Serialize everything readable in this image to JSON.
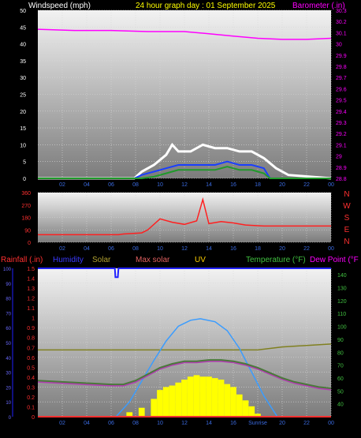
{
  "header": {
    "title_left": "Windspeed (mph)",
    "title_center": "24 hour graph day : 01 September 2025",
    "title_right": "Barometer (.in)"
  },
  "legend_bottom": {
    "rainfall": "Rainfall (.in)",
    "humidity": "Humidity",
    "solar": "Solar",
    "max_solar": "Max solar",
    "uv": "UV",
    "temperature": "Temperature (°F)",
    "dewpoint": "Dew Point (°F"
  },
  "colors": {
    "background": "#000000",
    "wind_avg": "#1a3fff",
    "wind_gust": "#ffffff",
    "wind_low": "#1f9a2a",
    "barometer": "#ff00ff",
    "wind_dir": "#ff2020",
    "humidity": "#2020ff",
    "rainfall": "#ff3030",
    "solar": "#ffff00",
    "solar_line": "#808020",
    "max_solar": "#3a9cff",
    "temperature": "#4a7a3a",
    "dewpoint": "#b040b0"
  },
  "chart_data": [
    {
      "id": "wind",
      "type": "line",
      "x_ticks": [
        "02",
        "04",
        "06",
        "08",
        "10",
        "12",
        "14",
        "16",
        "18",
        "20",
        "22",
        "00"
      ],
      "ylim_left": [
        0,
        50
      ],
      "yticks_left": [
        0,
        5,
        10,
        15,
        20,
        25,
        30,
        35,
        40,
        45,
        50
      ],
      "ylim_right": [
        28.8,
        30.3
      ],
      "yticks_right": [
        "28.8",
        "28.9",
        "29",
        "29.1",
        "29.2",
        "29.3",
        "29.4",
        "29.5",
        "29.6",
        "29.7",
        "29.8",
        "29.9",
        "30",
        "30.1",
        "30.2",
        "30.3"
      ],
      "barometer": {
        "x": [
          0,
          3,
          6,
          9,
          12,
          14,
          16,
          18,
          20,
          22,
          24
        ],
        "y": [
          30.13,
          30.12,
          30.12,
          30.11,
          30.11,
          30.09,
          30.07,
          30.05,
          30.04,
          30.04,
          30.05
        ]
      },
      "wind_avg": {
        "x": [
          0,
          7.9,
          8.5,
          9.5,
          10.5,
          11.5,
          12.5,
          13.5,
          14.5,
          15.5,
          16.5,
          17.5,
          18.5,
          19.0,
          24
        ],
        "y": [
          0,
          0,
          1,
          2,
          3,
          4,
          4,
          4,
          4,
          5,
          4,
          4,
          3,
          0,
          0
        ]
      },
      "wind_gust": {
        "x": [
          0,
          7.9,
          8.5,
          9.5,
          10.5,
          11.0,
          11.5,
          12.5,
          13.5,
          14.5,
          15.5,
          16.5,
          17.5,
          18.5,
          19.5,
          20.5,
          24
        ],
        "y": [
          0,
          0,
          2,
          4,
          7,
          10,
          8,
          8,
          10,
          9,
          9,
          8,
          8,
          6,
          3,
          1,
          0
        ]
      }
    },
    {
      "id": "direction",
      "type": "line",
      "x_ticks": [
        "02",
        "04",
        "06",
        "08",
        "10",
        "12",
        "14",
        "16",
        "18",
        "20",
        "22",
        "00"
      ],
      "ylim": [
        0,
        360
      ],
      "yticks": [
        0,
        90,
        180,
        270,
        360
      ],
      "compass": [
        "N",
        "W",
        "S",
        "E",
        "N"
      ],
      "series": {
        "x": [
          0,
          6.6,
          7.0,
          8.5,
          9.0,
          10,
          11,
          12,
          13,
          13.5,
          14,
          15,
          16,
          17,
          18,
          18.5,
          24
        ],
        "y": [
          55,
          55,
          60,
          68,
          90,
          170,
          145,
          130,
          155,
          310,
          135,
          150,
          140,
          125,
          120,
          118,
          118
        ]
      }
    },
    {
      "id": "weather",
      "type": "line",
      "x_ticks": [
        "02",
        "04",
        "06",
        "08",
        "10",
        "12",
        "14",
        "16",
        "Sunrise",
        "20",
        "22",
        "00"
      ],
      "ylim_left": [
        0,
        100
      ],
      "yticks_left": [
        0,
        10,
        20,
        30,
        40,
        50,
        60,
        70,
        80,
        90,
        100
      ],
      "ylim_rain": [
        0,
        1.5
      ],
      "yticks_rain": [
        "0",
        "0.1",
        "0.2",
        "0.3",
        "0.4",
        "0.5",
        "0.6",
        "0.7",
        "0.8",
        "0.9",
        "1",
        "1.1",
        "1.2",
        "1.3",
        "1.4",
        "1.5"
      ],
      "ylim_right": [
        30,
        145
      ],
      "yticks_right": [
        40,
        50,
        60,
        70,
        80,
        90,
        100,
        110,
        120,
        130,
        140
      ],
      "humidity": {
        "x": [
          0,
          6.3,
          6.35,
          6.55,
          6.6,
          24
        ],
        "y": [
          100,
          100,
          94,
          94,
          100,
          100
        ]
      },
      "temperature": {
        "x": [
          0,
          2,
          4,
          6,
          7,
          8,
          9,
          10,
          11,
          12,
          13,
          14,
          15,
          16,
          17,
          18,
          19,
          20,
          21,
          22,
          23,
          24
        ],
        "y": [
          58,
          57,
          56,
          55,
          55,
          58,
          63,
          68,
          71,
          73,
          73,
          74,
          74,
          73,
          71,
          68,
          64,
          60,
          57,
          55,
          53,
          52
        ]
      },
      "dewpoint": {
        "x": [
          0,
          2,
          4,
          6,
          7,
          8,
          9,
          10,
          11,
          12,
          13,
          14,
          15,
          16,
          17,
          18,
          19,
          20,
          21,
          22,
          23,
          24
        ],
        "y": [
          57,
          56,
          55,
          54,
          54,
          57,
          62,
          67,
          70,
          72,
          72,
          73,
          73,
          72,
          70,
          67,
          63,
          59,
          56,
          54,
          52,
          51
        ]
      },
      "max_solar": {
        "x": [
          6.4,
          7.5,
          8.5,
          9.5,
          10.5,
          11.5,
          12.5,
          13.3,
          14.5,
          15.5,
          16.5,
          17.5,
          18.5,
          19.6
        ],
        "y": [
          0,
          10,
          24,
          38,
          51,
          61,
          65,
          66,
          64,
          58,
          46,
          30,
          14,
          0
        ]
      },
      "solar_bars": {
        "x": [
          7.5,
          8.5,
          9.5,
          10.0,
          10.5,
          11.0,
          11.5,
          12.0,
          12.5,
          13.0,
          13.5,
          14.0,
          14.5,
          15.0,
          15.5,
          16.0,
          16.5,
          17.0,
          17.5,
          18.0
        ],
        "y": [
          3,
          6,
          12,
          18,
          20,
          21,
          23,
          25,
          27,
          28,
          27,
          27,
          26,
          25,
          22,
          20,
          15,
          11,
          7,
          2
        ]
      },
      "solar_line": {
        "x": [
          0,
          18,
          20,
          24
        ],
        "y": [
          45,
          45,
          47,
          49
        ]
      },
      "rainfall": {
        "x": [
          0,
          24
        ],
        "y": [
          0,
          0
        ]
      }
    }
  ]
}
